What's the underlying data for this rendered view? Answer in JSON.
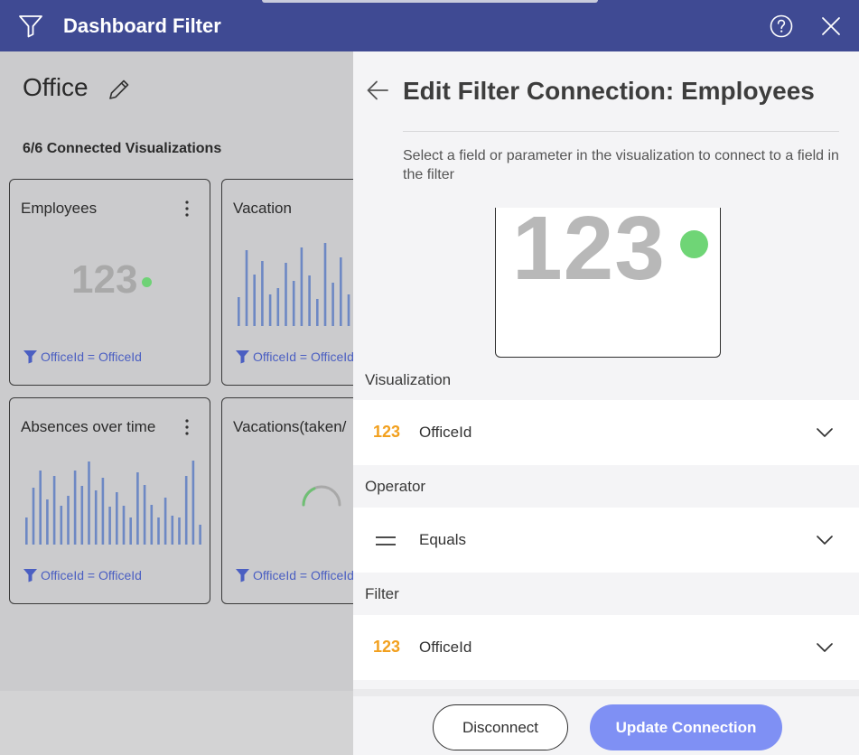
{
  "header": {
    "title": "Dashboard Filter",
    "icons": [
      "filter-icon",
      "help-icon",
      "close-icon"
    ]
  },
  "dashboard": {
    "name": "Office",
    "connected_label": "6/6 Connected Visualizations",
    "cards": [
      {
        "title": "Employees",
        "kind": "kpi",
        "kpi_value": "123",
        "filter": "OfficeId = OfficeId"
      },
      {
        "title": "Vacation",
        "kind": "bars",
        "filter": "OfficeId = OfficeId"
      },
      {
        "title": "Absences over time",
        "kind": "bars",
        "filter": "OfficeId = OfficeId"
      },
      {
        "title": "Vacations(taken/",
        "kind": "spinner",
        "filter": "OfficeId = OfficeId"
      }
    ]
  },
  "panel": {
    "title": "Edit Filter Connection: Employees",
    "instruction": "Select a field or parameter in the visualization to connect to a field in the filter",
    "preview_value": "123",
    "visualization": {
      "label": "Visualization",
      "type_badge": "123",
      "value": "OfficeId"
    },
    "operator": {
      "label": "Operator",
      "value": "Equals"
    },
    "filter": {
      "label": "Filter",
      "type_badge": "123",
      "value": "OfficeId"
    },
    "buttons": {
      "disconnect": "Disconnect",
      "update": "Update Connection"
    }
  },
  "colors": {
    "header_bg": "#3f4a93",
    "accent_button": "#7f90f4",
    "kpi_dot": "#6fd576",
    "type_badge": "#f2a01e",
    "filter_link": "#4b5fc2",
    "bar": "#6d88c4"
  }
}
